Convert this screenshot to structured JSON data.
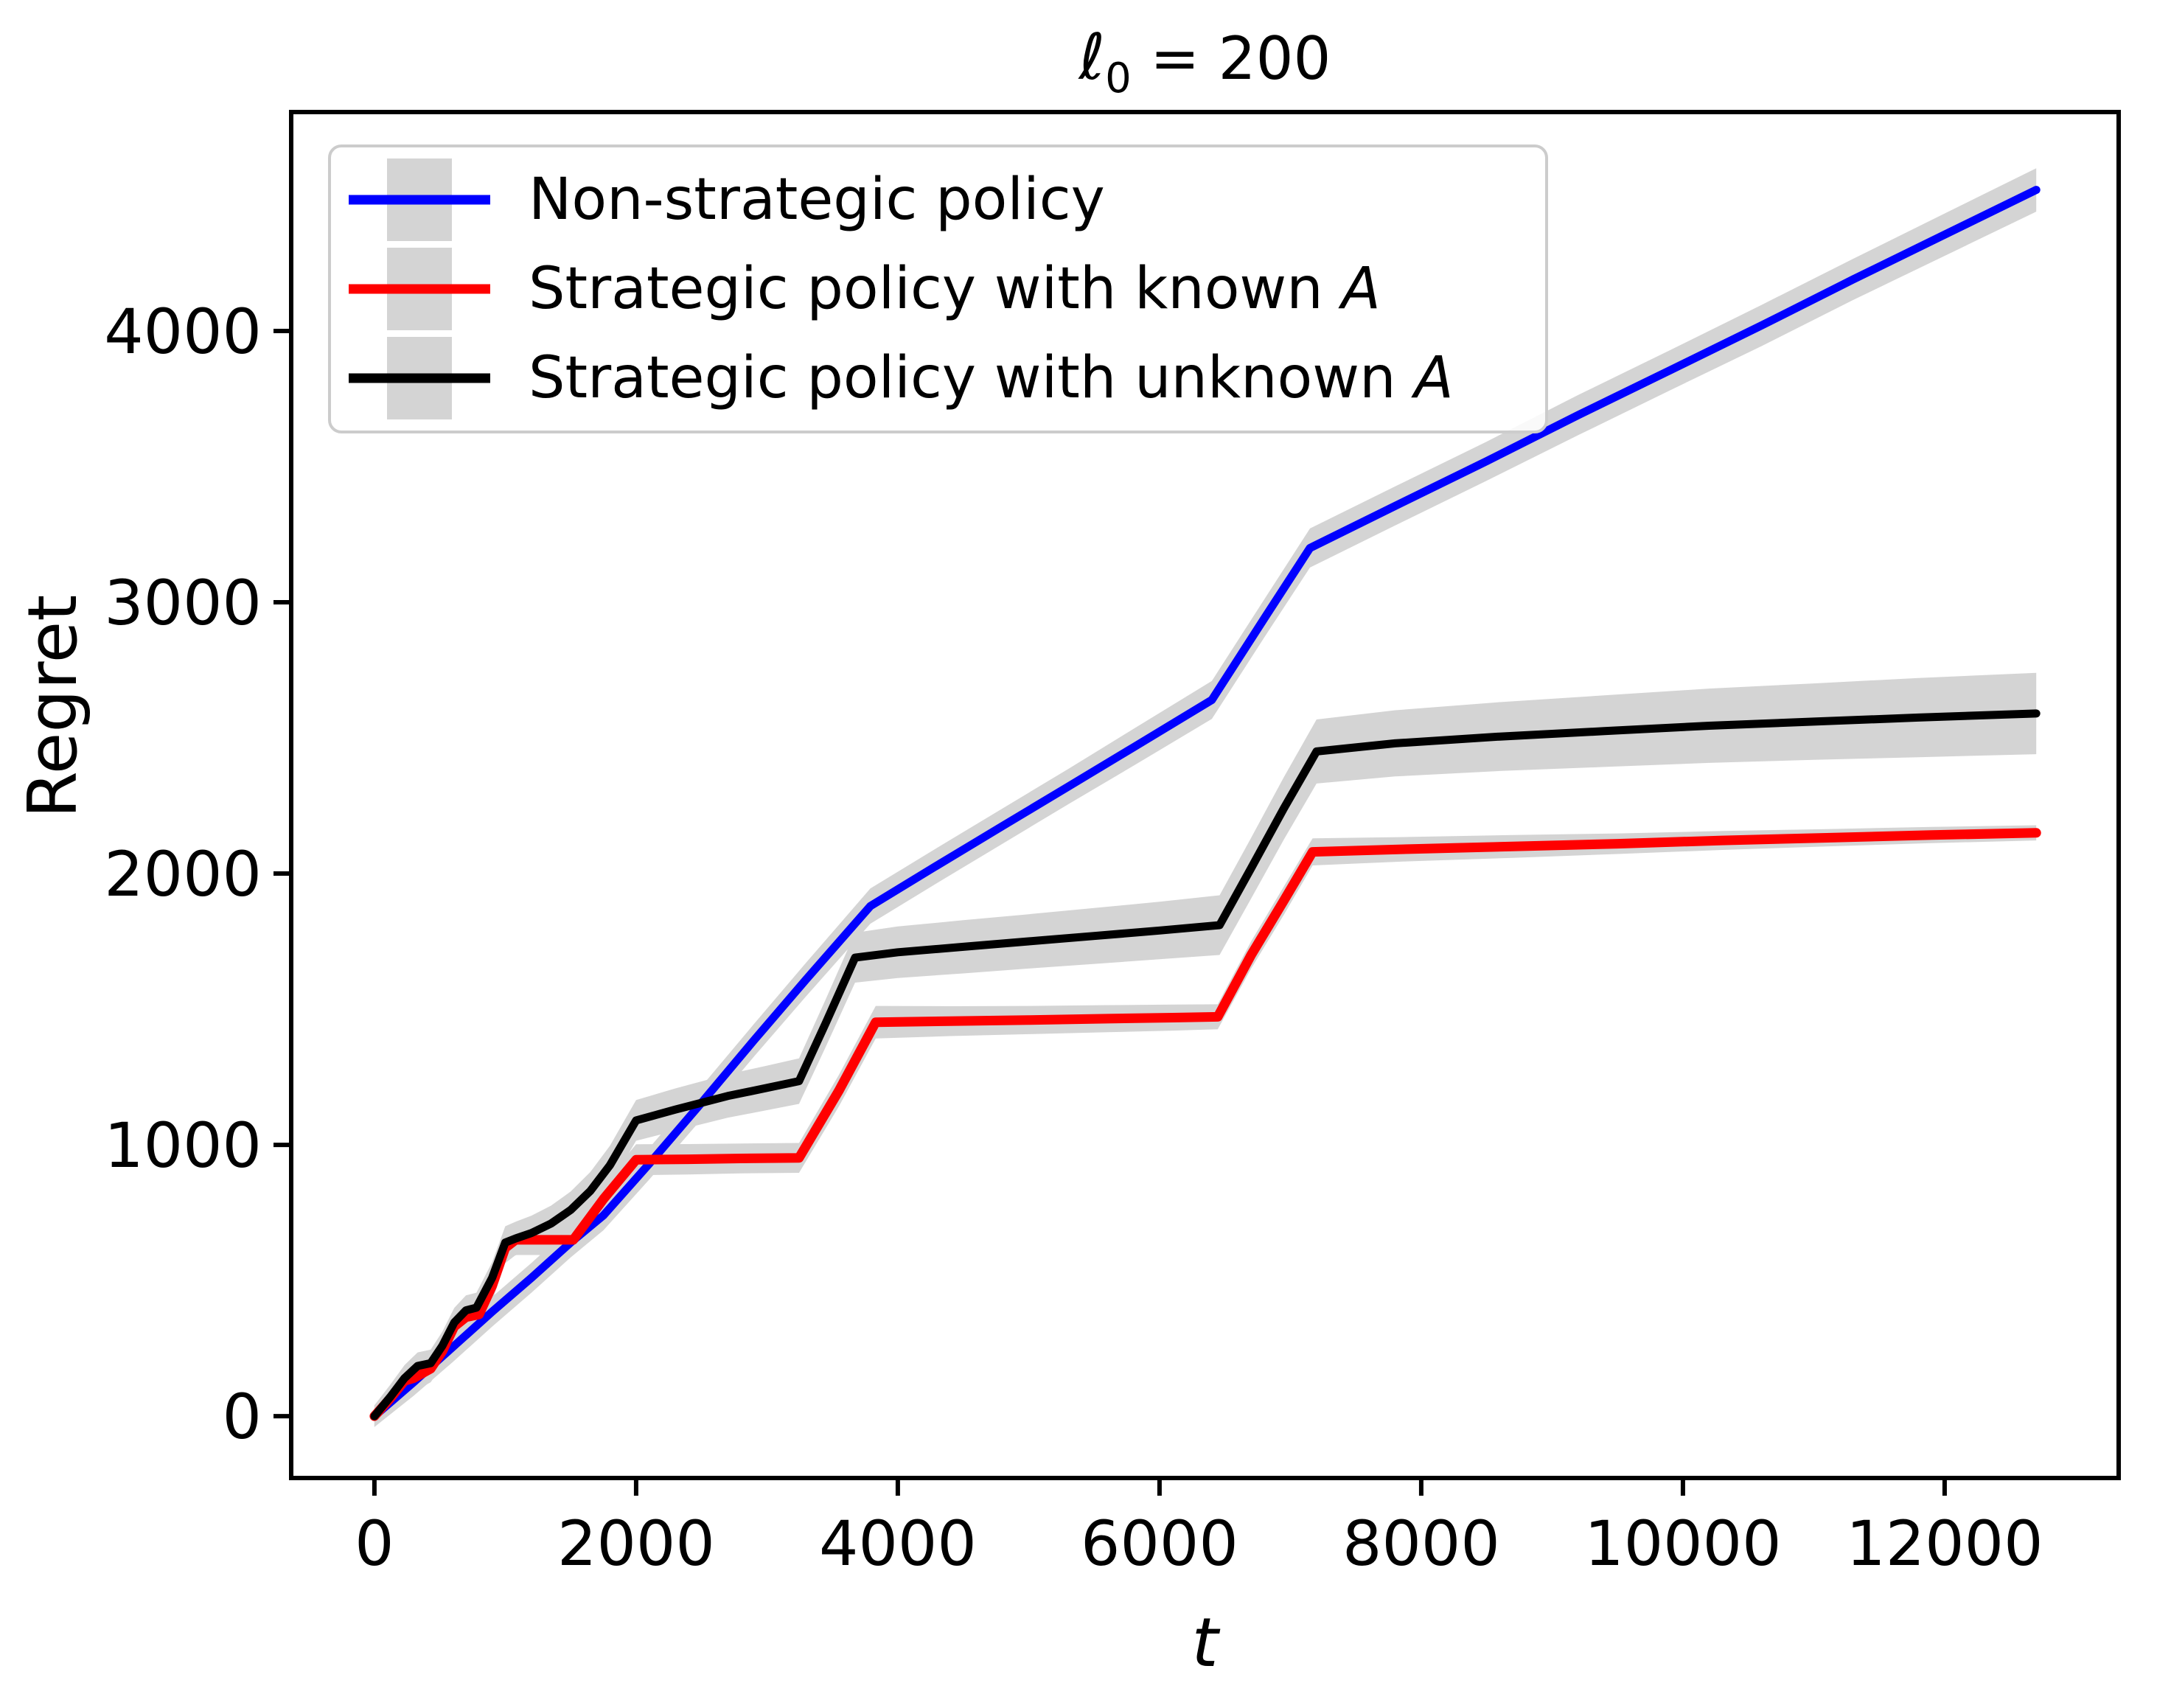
{
  "figure": {
    "title": {
      "symbol": "ℓ",
      "subscript": "0",
      "rest": " = 200"
    },
    "xlabel": "t",
    "ylabel": "Regret",
    "background": "#ffffff",
    "frame_color": "#000000"
  },
  "legend": {
    "items": [
      {
        "prefix": "Non-strategic policy",
        "italic": "",
        "color": "#0000ff"
      },
      {
        "prefix": "Strategic policy with known ",
        "italic": "A",
        "color": "#ff0000"
      },
      {
        "prefix": "Strategic policy with unknown ",
        "italic": "A",
        "color": "#000000"
      }
    ]
  },
  "chart_data": {
    "type": "line",
    "title": "ℓ₀ = 200",
    "xlabel": "t",
    "ylabel": "Regret",
    "xlim": [
      -636,
      13330
    ],
    "ylim": [
      -228,
      4807
    ],
    "x_ticks": [
      0,
      2000,
      4000,
      6000,
      8000,
      10000,
      12000
    ],
    "y_ticks": [
      0,
      1000,
      2000,
      3000,
      4000
    ],
    "grid": false,
    "legend_position": "upper left",
    "band_color": "#d4d4d4",
    "series": [
      {
        "name": "Non-strategic policy",
        "color": "#0000ff",
        "points": [
          [
            0,
            0
          ],
          [
            300,
            125
          ],
          [
            600,
            255
          ],
          [
            900,
            385
          ],
          [
            1200,
            510
          ],
          [
            1500,
            640
          ],
          [
            1750,
            740
          ],
          [
            2100,
            930
          ],
          [
            2500,
            1155
          ],
          [
            2900,
            1385
          ],
          [
            3300,
            1610
          ],
          [
            3790,
            1880
          ],
          [
            4300,
            2030
          ],
          [
            4800,
            2175
          ],
          [
            5300,
            2320
          ],
          [
            5800,
            2465
          ],
          [
            6400,
            2640
          ],
          [
            6800,
            2940
          ],
          [
            7150,
            3200
          ],
          [
            7800,
            3355
          ],
          [
            8500,
            3520
          ],
          [
            9200,
            3690
          ],
          [
            9900,
            3855
          ],
          [
            10600,
            4020
          ],
          [
            11300,
            4190
          ],
          [
            12000,
            4355
          ],
          [
            12700,
            4520
          ]
        ],
        "band_halfwidth": [
          40,
          50,
          55,
          55,
          55,
          55,
          55,
          58,
          60,
          60,
          62,
          65,
          65,
          65,
          65,
          68,
          70,
          70,
          72,
          72,
          72,
          74,
          74,
          76,
          76,
          78,
          80
        ]
      },
      {
        "name": "Strategic policy with known A",
        "color": "#ff0000",
        "points": [
          [
            0,
            0
          ],
          [
            120,
            65
          ],
          [
            230,
            130
          ],
          [
            300,
            140
          ],
          [
            430,
            175
          ],
          [
            520,
            240
          ],
          [
            610,
            330
          ],
          [
            700,
            365
          ],
          [
            800,
            375
          ],
          [
            900,
            480
          ],
          [
            1000,
            620
          ],
          [
            1080,
            650
          ],
          [
            1520,
            650
          ],
          [
            1750,
            800
          ],
          [
            2000,
            945
          ],
          [
            2400,
            947
          ],
          [
            2800,
            950
          ],
          [
            3245,
            952
          ],
          [
            3550,
            1200
          ],
          [
            3831,
            1452
          ],
          [
            4400,
            1456
          ],
          [
            5000,
            1460
          ],
          [
            5600,
            1465
          ],
          [
            6100,
            1469
          ],
          [
            6445,
            1472
          ],
          [
            6700,
            1700
          ],
          [
            6950,
            1900
          ],
          [
            7170,
            2080
          ],
          [
            7900,
            2090
          ],
          [
            8700,
            2100
          ],
          [
            9500,
            2110
          ],
          [
            10300,
            2122
          ],
          [
            11100,
            2132
          ],
          [
            11900,
            2142
          ],
          [
            12700,
            2150
          ]
        ],
        "band_halfwidth": [
          40,
          45,
          48,
          50,
          50,
          52,
          53,
          54,
          54,
          55,
          56,
          56,
          56,
          57,
          57,
          56,
          55,
          55,
          58,
          60,
          55,
          52,
          50,
          48,
          46,
          50,
          52,
          50,
          45,
          42,
          38,
          35,
          32,
          30,
          28
        ]
      },
      {
        "name": "Strategic policy with unknown A",
        "color": "#000000",
        "points": [
          [
            0,
            0
          ],
          [
            120,
            70
          ],
          [
            230,
            140
          ],
          [
            330,
            185
          ],
          [
            430,
            195
          ],
          [
            520,
            260
          ],
          [
            610,
            345
          ],
          [
            700,
            390
          ],
          [
            780,
            400
          ],
          [
            900,
            510
          ],
          [
            1000,
            640
          ],
          [
            1080,
            655
          ],
          [
            1200,
            675
          ],
          [
            1350,
            710
          ],
          [
            1500,
            760
          ],
          [
            1650,
            830
          ],
          [
            1800,
            925
          ],
          [
            2000,
            1090
          ],
          [
            2300,
            1130
          ],
          [
            2700,
            1180
          ],
          [
            3000,
            1210
          ],
          [
            3245,
            1235
          ],
          [
            3450,
            1450
          ],
          [
            3673,
            1690
          ],
          [
            4000,
            1710
          ],
          [
            4500,
            1730
          ],
          [
            5000,
            1750
          ],
          [
            5500,
            1770
          ],
          [
            6000,
            1790
          ],
          [
            6459,
            1810
          ],
          [
            6700,
            2020
          ],
          [
            6950,
            2240
          ],
          [
            7200,
            2450
          ],
          [
            7800,
            2480
          ],
          [
            8600,
            2505
          ],
          [
            9400,
            2525
          ],
          [
            10200,
            2545
          ],
          [
            11000,
            2560
          ],
          [
            11800,
            2575
          ],
          [
            12700,
            2590
          ]
        ],
        "band_halfwidth": [
          40,
          45,
          48,
          50,
          50,
          52,
          54,
          55,
          55,
          58,
          60,
          62,
          64,
          66,
          68,
          70,
          72,
          75,
          78,
          80,
          82,
          84,
          88,
          92,
          95,
          98,
          100,
          103,
          106,
          110,
          112,
          115,
          118,
          122,
          127,
          132,
          137,
          141,
          146,
          150
        ]
      }
    ]
  }
}
